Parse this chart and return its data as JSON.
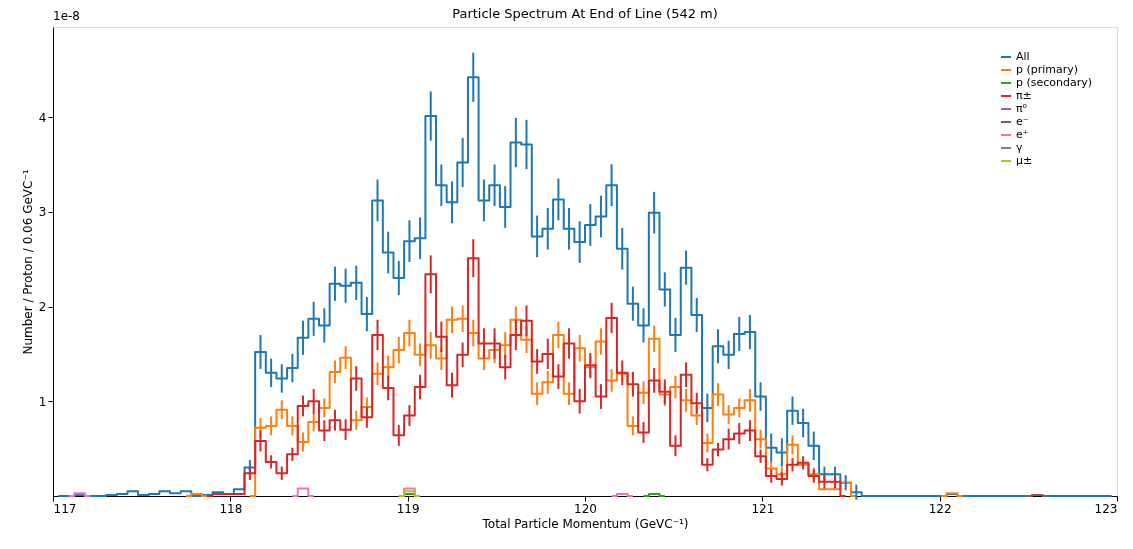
{
  "chart_data": {
    "type": "step",
    "title": "Particle Spectrum At End of Line (542 m)",
    "xlabel": "Total Particle Momentum (GeVC⁻¹)",
    "ylabel": "Number / Proton / 0.06 GeVC⁻¹",
    "annotations": [
      "1e-8"
    ],
    "x": [
      117.03,
      117.09,
      117.15,
      117.21,
      117.27,
      117.33,
      117.39,
      117.45,
      117.51,
      117.57,
      117.63,
      117.69,
      117.75,
      117.81,
      117.87,
      117.93,
      117.99,
      118.05,
      118.11,
      118.17,
      118.23,
      118.29,
      118.35,
      118.41,
      118.47,
      118.53,
      118.59,
      118.65,
      118.71,
      118.77,
      118.83,
      118.89,
      118.95,
      119.01,
      119.07,
      119.13,
      119.19,
      119.25,
      119.31,
      119.37,
      119.43,
      119.49,
      119.55,
      119.61,
      119.67,
      119.73,
      119.79,
      119.85,
      119.91,
      119.97,
      120.03,
      120.09,
      120.15,
      120.21,
      120.27,
      120.33,
      120.39,
      120.45,
      120.51,
      120.57,
      120.63,
      120.69,
      120.75,
      120.81,
      120.87,
      120.93,
      120.99,
      121.05,
      121.11,
      121.17,
      121.23,
      121.29,
      121.35,
      121.41,
      121.47,
      121.53,
      121.59,
      121.65,
      121.71,
      121.77,
      121.83,
      121.89,
      121.95,
      122.01,
      122.07,
      122.13,
      122.19,
      122.25,
      122.31,
      122.37,
      122.43,
      122.49,
      122.55,
      122.61,
      122.67,
      122.73,
      122.79,
      122.85,
      122.91,
      122.97
    ],
    "xlim": [
      117,
      123
    ],
    "xticks": [
      117,
      118,
      119,
      120,
      121,
      122,
      123
    ],
    "ylim": [
      0,
      4.95
    ],
    "yticks": [
      1,
      2,
      3,
      4
    ],
    "grid": false,
    "legend": "top right",
    "series": [
      {
        "name": "All",
        "color": "#1f77b4",
        "values": [
          0,
          0,
          0.01,
          0,
          0,
          0.01,
          0.02,
          0.05,
          0.01,
          0.02,
          0.05,
          0.03,
          0.05,
          0,
          0.01,
          0.04,
          0.02,
          0.07,
          0.3,
          1.52,
          1.3,
          1.24,
          1.35,
          1.67,
          1.87,
          1.8,
          2.24,
          2.22,
          2.25,
          1.92,
          3.12,
          2.57,
          2.3,
          2.69,
          2.72,
          4.01,
          3.28,
          3.1,
          3.52,
          4.42,
          3.12,
          3.28,
          3.05,
          3.73,
          3.71,
          2.74,
          2.82,
          3.13,
          2.82,
          2.68,
          2.86,
          2.95,
          3.28,
          2.61,
          2.03,
          1.8,
          2.99,
          2.18,
          1.7,
          2.41,
          1.91,
          0.93,
          1.58,
          1.49,
          1.71,
          1.73,
          1.05,
          0.51,
          0.46,
          0.9,
          0.77,
          0.53,
          0.23,
          0.23,
          0.14,
          0.04,
          0,
          0,
          0,
          0,
          0,
          0,
          0,
          0,
          0.02,
          0,
          0,
          0,
          0,
          0,
          0,
          0,
          0.01,
          0,
          0,
          0,
          0,
          0,
          0,
          0
        ],
        "errors": [
          null,
          null,
          null,
          null,
          null,
          null,
          null,
          null,
          null,
          null,
          null,
          null,
          null,
          null,
          null,
          null,
          null,
          null,
          0.08,
          0.18,
          0.15,
          0.15,
          0.15,
          0.18,
          0.18,
          0.18,
          0.18,
          0.18,
          0.18,
          0.18,
          0.22,
          0.22,
          0.18,
          0.22,
          0.22,
          0.26,
          0.22,
          0.22,
          0.26,
          0.26,
          0.22,
          0.22,
          0.22,
          0.26,
          0.26,
          0.22,
          0.22,
          0.22,
          0.22,
          0.22,
          0.22,
          0.22,
          0.22,
          0.22,
          0.18,
          0.18,
          0.22,
          0.18,
          0.18,
          0.18,
          0.18,
          0.15,
          0.18,
          0.15,
          0.18,
          0.18,
          0.15,
          0.15,
          0.15,
          0.15,
          0.15,
          0.15,
          0.08,
          0.08,
          0.08,
          0.08,
          null,
          null,
          null,
          null,
          null,
          null,
          null,
          null,
          null,
          null,
          null,
          null,
          null,
          null,
          null,
          null,
          null,
          null,
          null,
          null,
          null,
          null,
          null,
          null
        ]
      },
      {
        "name": "p (primary)",
        "color": "#ff7f0e",
        "values": [
          null,
          null,
          null,
          null,
          null,
          null,
          null,
          null,
          null,
          null,
          null,
          null,
          0,
          0.02,
          0,
          null,
          null,
          null,
          0,
          0.72,
          0.74,
          0.91,
          0.74,
          0.57,
          0.78,
          0.93,
          1.31,
          1.46,
          0.8,
          0.94,
          1.29,
          1.36,
          1.54,
          1.72,
          1.49,
          1.59,
          1.45,
          1.86,
          1.87,
          1.72,
          1.45,
          1.54,
          1.59,
          1.86,
          1.65,
          1.08,
          1.2,
          1.7,
          1.08,
          1.56,
          1.36,
          1.63,
          1.22,
          1.29,
          0.74,
          1.09,
          1.66,
          1.07,
          1.15,
          1.01,
          0.85,
          0.56,
          1.07,
          0.86,
          0.93,
          1.01,
          0.6,
          0.29,
          0.23,
          0.54,
          0.33,
          0.23,
          0.07,
          0.07,
          0.14,
          0,
          null,
          null,
          null,
          null,
          null,
          null,
          null,
          0,
          0.03,
          0,
          null,
          null,
          null,
          null,
          null,
          null,
          null,
          null,
          null,
          null,
          null,
          null,
          null,
          null
        ],
        "errors": [
          null,
          null,
          null,
          null,
          null,
          null,
          null,
          null,
          null,
          null,
          null,
          null,
          null,
          null,
          null,
          null,
          null,
          null,
          null,
          0.1,
          0.1,
          0.1,
          0.1,
          0.1,
          0.1,
          0.1,
          0.12,
          0.12,
          0.1,
          0.1,
          0.12,
          0.12,
          0.14,
          0.14,
          0.12,
          0.14,
          0.12,
          0.14,
          0.14,
          0.14,
          0.12,
          0.14,
          0.14,
          0.14,
          0.14,
          0.12,
          0.12,
          0.14,
          0.12,
          0.14,
          0.12,
          0.14,
          0.12,
          null,
          0.1,
          0.12,
          0.14,
          0.12,
          0.12,
          0.12,
          0.1,
          0.1,
          0.12,
          0.1,
          0.1,
          0.12,
          0.1,
          0.07,
          0.07,
          0.1,
          null,
          0.07,
          null,
          null,
          null,
          null,
          null,
          null,
          null,
          null,
          null,
          null,
          null,
          null,
          null,
          null,
          null,
          null,
          null,
          null,
          null,
          null,
          null,
          null,
          null,
          null,
          null,
          null,
          null,
          null
        ]
      },
      {
        "name": "p (secondary)",
        "color": "#2ca02c",
        "values": [
          null,
          null,
          null,
          null,
          null,
          null,
          null,
          null,
          null,
          null,
          null,
          null,
          null,
          null,
          null,
          null,
          null,
          null,
          null,
          null,
          null,
          null,
          null,
          null,
          null,
          null,
          null,
          null,
          null,
          null,
          null,
          null,
          0,
          0.02,
          0,
          null,
          null,
          null,
          null,
          null,
          null,
          null,
          null,
          null,
          null,
          null,
          null,
          null,
          null,
          null,
          null,
          null,
          null,
          null,
          null,
          0,
          0.02,
          0,
          null,
          null,
          null,
          null,
          null,
          null,
          null,
          null,
          null,
          null,
          null,
          null,
          null,
          null,
          null,
          null,
          null,
          null,
          null,
          null,
          null,
          null,
          null,
          null,
          null,
          null,
          null,
          null,
          null,
          null,
          null,
          null,
          null,
          null,
          null,
          null,
          null,
          null,
          null,
          null,
          null,
          null
        ]
      },
      {
        "name": "π±",
        "color": "#d62728",
        "values": [
          null,
          null,
          null,
          null,
          null,
          null,
          null,
          null,
          null,
          null,
          null,
          null,
          null,
          null,
          0,
          0.02,
          0.02,
          0.02,
          0.24,
          0.58,
          0.36,
          0.24,
          0.44,
          0.95,
          1.0,
          0.69,
          0.8,
          0.7,
          1.24,
          0.83,
          1.7,
          1.14,
          0.64,
          0.85,
          1.15,
          2.34,
          1.68,
          1.17,
          1.49,
          2.51,
          1.61,
          1.61,
          1.36,
          1.7,
          1.85,
          1.42,
          1.5,
          1.26,
          1.61,
          1.0,
          1.38,
          1.05,
          1.88,
          1.3,
          1.18,
          0.67,
          1.22,
          1.1,
          0.53,
          1.28,
          0.98,
          0.33,
          0.49,
          0.6,
          0.66,
          0.69,
          0.42,
          0.21,
          0.18,
          0.33,
          0.35,
          0.21,
          0.15,
          0.15,
          0,
          null,
          null,
          null,
          null,
          null,
          null,
          null,
          null,
          null,
          null,
          null,
          null,
          null,
          null,
          null,
          null,
          null,
          null,
          null,
          null,
          null,
          null,
          null,
          null,
          null
        ],
        "errors": [
          null,
          null,
          null,
          null,
          null,
          null,
          null,
          null,
          null,
          null,
          null,
          null,
          null,
          null,
          null,
          null,
          null,
          null,
          0.07,
          0.11,
          0.07,
          0.07,
          0.07,
          0.11,
          0.13,
          0.11,
          0.11,
          0.11,
          0.13,
          0.11,
          0.16,
          0.13,
          0.11,
          0.11,
          0.13,
          0.2,
          0.16,
          0.13,
          0.13,
          0.2,
          0.16,
          0.16,
          0.13,
          0.16,
          0.16,
          0.13,
          0.16,
          0.13,
          0.16,
          0.13,
          0.13,
          0.13,
          0.16,
          0.13,
          0.13,
          0.11,
          0.13,
          0.13,
          0.11,
          0.13,
          0.11,
          0.07,
          0.07,
          0.11,
          0.11,
          0.11,
          0.07,
          0.07,
          0.07,
          0.07,
          0.07,
          0.07,
          0.07,
          0.07,
          null,
          null,
          null,
          null,
          null,
          null,
          null,
          null,
          null,
          null,
          null,
          null,
          null,
          null,
          null,
          null,
          null,
          null,
          null,
          null,
          null,
          null,
          null,
          null,
          null,
          null
        ]
      },
      {
        "name": "π⁰",
        "color": "#9467bd",
        "values": [
          null,
          null,
          null,
          null,
          null,
          null,
          null,
          null,
          null,
          null,
          null,
          null,
          null,
          null,
          null,
          null,
          null,
          null,
          null,
          null,
          null,
          null,
          null,
          null,
          null,
          null,
          null,
          null,
          null,
          null,
          null,
          null,
          null,
          null,
          null,
          null,
          null,
          null,
          null,
          null,
          null,
          null,
          null,
          null,
          null,
          null,
          null,
          null,
          null,
          null,
          null,
          null,
          null,
          null,
          null,
          null,
          null,
          null,
          null,
          null,
          null,
          null,
          null,
          null,
          null,
          null,
          null,
          null,
          null,
          null,
          null,
          null,
          null,
          null,
          null,
          null,
          null,
          null,
          null,
          null,
          null,
          null,
          null,
          null,
          null,
          null,
          null,
          null,
          null,
          null,
          null,
          null,
          null,
          null,
          null,
          null,
          null,
          null,
          null,
          null
        ]
      },
      {
        "name": "e⁻",
        "color": "#8c564b",
        "values": [
          null,
          null,
          null,
          null,
          null,
          null,
          null,
          null,
          null,
          null,
          null,
          null,
          null,
          null,
          null,
          null,
          null,
          null,
          null,
          null,
          null,
          null,
          null,
          null,
          null,
          null,
          null,
          null,
          null,
          null,
          null,
          null,
          null,
          null,
          null,
          null,
          null,
          null,
          null,
          null,
          null,
          null,
          null,
          null,
          null,
          null,
          null,
          null,
          null,
          null,
          null,
          null,
          null,
          null,
          null,
          null,
          null,
          null,
          null,
          null,
          null,
          null,
          null,
          null,
          null,
          null,
          null,
          null,
          null,
          null,
          null,
          null,
          null,
          null,
          null,
          null,
          null,
          null,
          null,
          null,
          null,
          null,
          null,
          null,
          null,
          null,
          null,
          null,
          null,
          null,
          null,
          0,
          0.01,
          0,
          null,
          null,
          null,
          null,
          null,
          null
        ]
      },
      {
        "name": "e⁺",
        "color": "#e377c2",
        "values": [
          null,
          0,
          0.03,
          0,
          null,
          null,
          null,
          null,
          null,
          null,
          null,
          null,
          null,
          null,
          null,
          null,
          null,
          null,
          null,
          null,
          null,
          null,
          0,
          0.08,
          0,
          null,
          null,
          null,
          null,
          null,
          null,
          null,
          0,
          0.08,
          0,
          null,
          null,
          null,
          null,
          null,
          null,
          null,
          null,
          null,
          null,
          null,
          null,
          null,
          null,
          null,
          null,
          null,
          0,
          0.02,
          0,
          null,
          null,
          null,
          null,
          null,
          null,
          null,
          null,
          null,
          null,
          null,
          null,
          null,
          null,
          null,
          null,
          null,
          null,
          null,
          null,
          null,
          null,
          null,
          null,
          null,
          null,
          null,
          null,
          null,
          null,
          null,
          null,
          null,
          null,
          null,
          null,
          null,
          null,
          null,
          null,
          null,
          null,
          null,
          null,
          null
        ]
      },
      {
        "name": "γ",
        "color": "#7f7f7f",
        "values": [
          null,
          null,
          null,
          null,
          null,
          null,
          null,
          null,
          null,
          null,
          null,
          null,
          null,
          null,
          null,
          null,
          null,
          null,
          null,
          null,
          null,
          null,
          null,
          null,
          null,
          null,
          null,
          null,
          null,
          null,
          null,
          null,
          null,
          null,
          null,
          null,
          null,
          null,
          null,
          null,
          null,
          null,
          null,
          null,
          null,
          null,
          null,
          null,
          null,
          null,
          null,
          null,
          null,
          null,
          null,
          null,
          null,
          null,
          null,
          null,
          null,
          null,
          null,
          null,
          null,
          null,
          null,
          null,
          null,
          null,
          null,
          null,
          null,
          null,
          null,
          null,
          null,
          null,
          null,
          null,
          null,
          null,
          null,
          null,
          null,
          null,
          null,
          null,
          null,
          null,
          null,
          null,
          null,
          null,
          null,
          null,
          null,
          null,
          null,
          null
        ]
      },
      {
        "name": "μ±",
        "color": "#bcbd22",
        "values": [
          null,
          null,
          null,
          null,
          null,
          null,
          null,
          null,
          null,
          null,
          null,
          null,
          null,
          null,
          null,
          null,
          null,
          null,
          null,
          null,
          null,
          null,
          null,
          null,
          null,
          null,
          null,
          null,
          null,
          null,
          null,
          null,
          0,
          0.05,
          0,
          null,
          null,
          null,
          null,
          null,
          null,
          null,
          null,
          null,
          null,
          null,
          null,
          null,
          null,
          null,
          null,
          null,
          null,
          null,
          null,
          null,
          null,
          null,
          null,
          null,
          null,
          null,
          null,
          null,
          null,
          null,
          null,
          null,
          null,
          null,
          null,
          null,
          null,
          null,
          null,
          null,
          null,
          null,
          null,
          null,
          null,
          null,
          null,
          null,
          null,
          null,
          null,
          null,
          null,
          null,
          null,
          null,
          null,
          null,
          null,
          null,
          null,
          null,
          null,
          null
        ]
      }
    ]
  }
}
